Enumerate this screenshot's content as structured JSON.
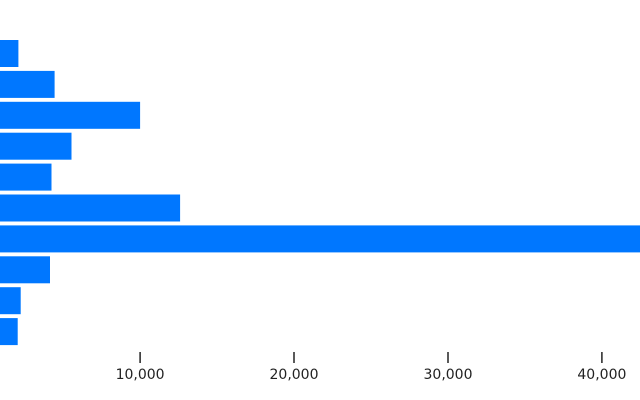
{
  "chart_data": {
    "type": "bar",
    "orientation": "horizontal",
    "bar_color": "#0077ff",
    "title": "",
    "xlabel": "",
    "ylabel": "",
    "grid": false,
    "xlim": [
      1000,
      44000
    ],
    "x_ticks": [
      {
        "value": 10000,
        "label": "10,000"
      },
      {
        "value": 20000,
        "label": "20,000"
      },
      {
        "value": 30000,
        "label": "30,000"
      },
      {
        "value": 40000,
        "label": "40,000"
      }
    ],
    "values": [
      2100,
      4450,
      10000,
      5550,
      4250,
      12600,
      44000,
      4150,
      2250,
      2050
    ]
  }
}
